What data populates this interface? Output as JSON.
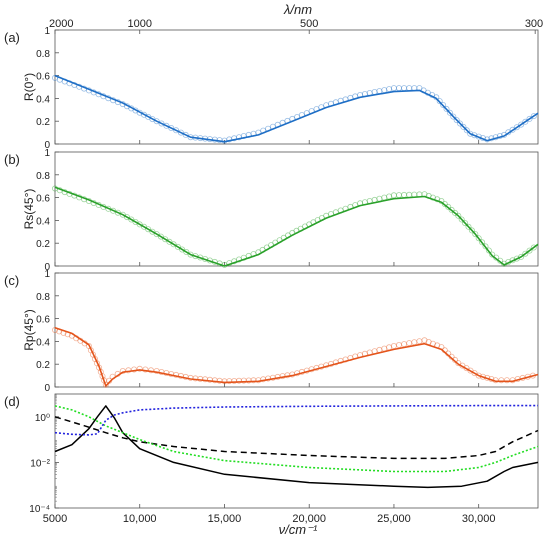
{
  "top_axis": {
    "label": "λ/nm",
    "ticks": [
      {
        "value": 2000,
        "label": "2000"
      },
      {
        "value": 1000,
        "label": "1000"
      },
      {
        "value": 500,
        "label": "500"
      },
      {
        "value": 300,
        "label": "300"
      }
    ]
  },
  "x_axis": {
    "label": "ν/cm⁻¹",
    "range": [
      5000,
      33500
    ],
    "ticks": [
      {
        "value": 5000,
        "label": "5000"
      },
      {
        "value": 10000,
        "label": "10,000"
      },
      {
        "value": 15000,
        "label": "15,000"
      },
      {
        "value": 20000,
        "label": "20,000"
      },
      {
        "value": 25000,
        "label": "25,000"
      },
      {
        "value": 30000,
        "label": "30,000"
      }
    ]
  },
  "colors": {
    "a": "#1f6fc6",
    "b": "#2aa12a",
    "c": "#e4541b",
    "d_black": "#000000",
    "d_dashed": "#000000",
    "d_green": "#22dd22",
    "d_blue": "#2222dd"
  },
  "chart_data": [
    {
      "type": "line",
      "panel_label": "(a)",
      "ylabel": "R(0°)",
      "ylim": [
        0,
        1
      ],
      "yticks": [
        "0",
        "0.2",
        "0.4",
        "0.6",
        "0.8",
        "1"
      ],
      "grid": false,
      "series": [
        {
          "style": "solid",
          "x": [
            5000,
            7000,
            9000,
            11000,
            13000,
            15000,
            17000,
            19000,
            21000,
            23000,
            25000,
            26500,
            27500,
            28500,
            29500,
            30500,
            31500,
            32500,
            33500
          ],
          "y": [
            0.6,
            0.48,
            0.36,
            0.2,
            0.06,
            0.02,
            0.08,
            0.2,
            0.32,
            0.41,
            0.46,
            0.47,
            0.4,
            0.24,
            0.09,
            0.03,
            0.07,
            0.17,
            0.27
          ]
        },
        {
          "style": "markers",
          "x": [
            5000,
            7000,
            9000,
            11000,
            13000,
            15000,
            17000,
            19000,
            21000,
            23000,
            25000,
            26500,
            27500,
            28500,
            29500,
            30500,
            31500,
            32500,
            33500
          ],
          "y": [
            0.58,
            0.47,
            0.35,
            0.2,
            0.06,
            0.03,
            0.1,
            0.22,
            0.34,
            0.43,
            0.49,
            0.49,
            0.41,
            0.24,
            0.09,
            0.04,
            0.08,
            0.17,
            0.27
          ]
        }
      ]
    },
    {
      "type": "line",
      "panel_label": "(b)",
      "ylabel": "Rs(45°)",
      "ylim": [
        0,
        1
      ],
      "yticks": [
        "0",
        "0.2",
        "0.4",
        "0.6",
        "0.8",
        "1"
      ],
      "grid": false,
      "series": [
        {
          "style": "solid",
          "x": [
            5000,
            7000,
            9000,
            11000,
            13000,
            15000,
            17000,
            19000,
            21000,
            23000,
            25000,
            26800,
            27800,
            28800,
            29800,
            30800,
            31500,
            32500,
            33500
          ],
          "y": [
            0.69,
            0.58,
            0.45,
            0.28,
            0.1,
            0.0,
            0.1,
            0.27,
            0.42,
            0.53,
            0.59,
            0.61,
            0.56,
            0.44,
            0.28,
            0.09,
            0.01,
            0.08,
            0.19
          ]
        },
        {
          "style": "markers",
          "x": [
            5000,
            7000,
            9000,
            11000,
            13000,
            15000,
            17000,
            19000,
            21000,
            23000,
            25000,
            26800,
            27800,
            28800,
            29800,
            30800,
            31500,
            32500,
            33500
          ],
          "y": [
            0.68,
            0.57,
            0.45,
            0.28,
            0.1,
            0.01,
            0.12,
            0.29,
            0.44,
            0.55,
            0.62,
            0.63,
            0.57,
            0.44,
            0.28,
            0.1,
            0.02,
            0.08,
            0.19
          ]
        }
      ]
    },
    {
      "type": "line",
      "panel_label": "(c)",
      "ylabel": "Rp(45°)",
      "ylim": [
        0,
        1
      ],
      "yticks": [
        "0",
        "0.2",
        "0.4",
        "0.6",
        "0.8",
        "1"
      ],
      "grid": false,
      "series": [
        {
          "style": "solid",
          "x": [
            5000,
            6000,
            7000,
            7600,
            8000,
            8400,
            9000,
            10000,
            11000,
            13000,
            15000,
            17000,
            19000,
            21000,
            23000,
            25000,
            26800,
            27800,
            28800,
            30000,
            31000,
            32000,
            33500
          ],
          "y": [
            0.52,
            0.47,
            0.37,
            0.18,
            0.01,
            0.07,
            0.13,
            0.15,
            0.13,
            0.07,
            0.04,
            0.05,
            0.1,
            0.18,
            0.26,
            0.33,
            0.38,
            0.33,
            0.2,
            0.1,
            0.05,
            0.05,
            0.11
          ]
        },
        {
          "style": "markers",
          "x": [
            5000,
            6000,
            7000,
            7600,
            8000,
            8400,
            9000,
            10000,
            11000,
            13000,
            15000,
            17000,
            19000,
            21000,
            23000,
            25000,
            26800,
            27800,
            28800,
            30000,
            31000,
            32000,
            33500
          ],
          "y": [
            0.5,
            0.45,
            0.36,
            0.17,
            0.02,
            0.09,
            0.14,
            0.16,
            0.14,
            0.08,
            0.05,
            0.06,
            0.11,
            0.19,
            0.28,
            0.36,
            0.41,
            0.35,
            0.21,
            0.1,
            0.06,
            0.06,
            0.11
          ]
        }
      ]
    },
    {
      "type": "line",
      "panel_label": "(d)",
      "yscale": "log",
      "ylim": [
        0.0001,
        10
      ],
      "yticks": [
        "10⁰",
        "10⁻²",
        "10⁻⁴"
      ],
      "grid": false,
      "series": [
        {
          "style": "solid-black",
          "x": [
            5000,
            6000,
            7000,
            7500,
            8000,
            8500,
            9000,
            10000,
            12000,
            15000,
            20000,
            25000,
            27000,
            29000,
            30500,
            31500,
            32000,
            33500
          ],
          "y": [
            0.03,
            0.06,
            0.3,
            1.0,
            3.0,
            0.9,
            0.2,
            0.04,
            0.01,
            0.003,
            0.0013,
            0.0009,
            0.0008,
            0.0009,
            0.0015,
            0.004,
            0.006,
            0.01
          ]
        },
        {
          "style": "dashed-black",
          "x": [
            5000,
            6000,
            7000,
            8000,
            9000,
            10000,
            12000,
            15000,
            20000,
            25000,
            28000,
            30000,
            31000,
            32000,
            33500
          ],
          "y": [
            1.0,
            0.6,
            0.35,
            0.2,
            0.12,
            0.08,
            0.05,
            0.03,
            0.02,
            0.015,
            0.015,
            0.02,
            0.03,
            0.08,
            0.25
          ]
        },
        {
          "style": "dotted-green",
          "x": [
            5000,
            6000,
            7000,
            8000,
            9000,
            10000,
            12000,
            15000,
            20000,
            25000,
            28000,
            30000,
            31000,
            32000,
            33500
          ],
          "y": [
            3.0,
            2.0,
            1.0,
            0.4,
            0.2,
            0.1,
            0.03,
            0.012,
            0.006,
            0.004,
            0.004,
            0.006,
            0.01,
            0.02,
            0.05
          ]
        },
        {
          "style": "dotted-blue",
          "x": [
            5000,
            6000,
            7000,
            7500,
            8000,
            8500,
            9000,
            10000,
            12000,
            15000,
            20000,
            25000,
            30000,
            33500
          ],
          "y": [
            0.2,
            0.17,
            0.16,
            0.18,
            0.7,
            1.2,
            1.5,
            2.0,
            2.4,
            2.7,
            2.9,
            3.0,
            3.1,
            3.1
          ]
        }
      ]
    }
  ]
}
